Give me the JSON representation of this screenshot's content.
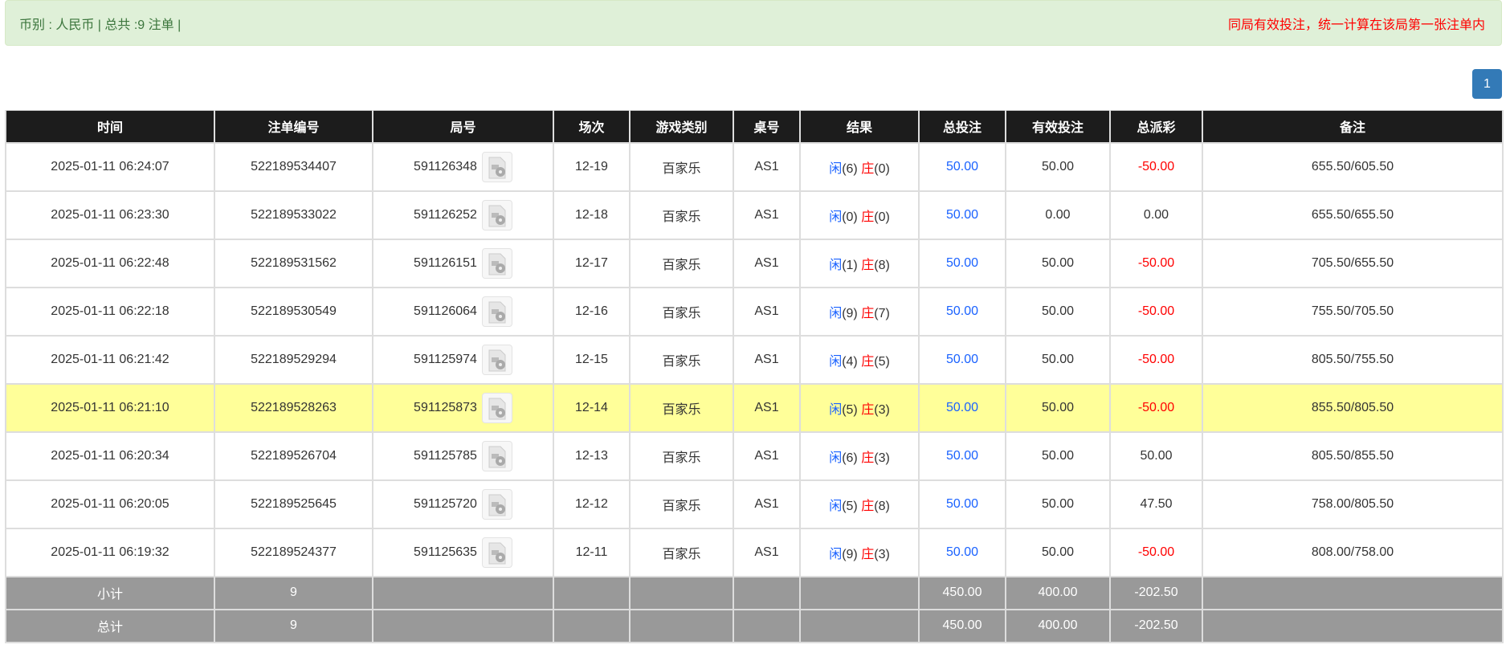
{
  "alert": {
    "summary": "币别 : 人民币 | 总共 :9 注单 |",
    "note": "同局有效投注，统一计算在该局第一张注单内"
  },
  "pagination": {
    "current": "1"
  },
  "colors": {
    "player": "#1a62ff",
    "banker": "#ff0000",
    "negative": "#ff0000",
    "highlight": "#ffff99",
    "header": "#1c1c1c",
    "summary": "#999999",
    "pager": "#337ab7"
  },
  "table": {
    "headers": [
      "时间",
      "注单编号",
      "局号",
      "场次",
      "游戏类别",
      "桌号",
      "结果",
      "总投注",
      "有效投注",
      "总派彩",
      "备注"
    ],
    "rows": [
      {
        "time": "2025-01-11 06:24:07",
        "bet_id": "522189534407",
        "round": "591126348",
        "shoe": "12-19",
        "game": "百家乐",
        "table": "AS1",
        "p": "闲",
        "pv": "(6)",
        "b": "庄",
        "bv": "(0)",
        "total": "50.00",
        "valid": "50.00",
        "payout": "-50.00",
        "neg": true,
        "remark": "655.50/605.50"
      },
      {
        "time": "2025-01-11 06:23:30",
        "bet_id": "522189533022",
        "round": "591126252",
        "shoe": "12-18",
        "game": "百家乐",
        "table": "AS1",
        "p": "闲",
        "pv": "(0)",
        "b": "庄",
        "bv": "(0)",
        "total": "50.00",
        "valid": "0.00",
        "payout": "0.00",
        "neg": false,
        "remark": "655.50/655.50"
      },
      {
        "time": "2025-01-11 06:22:48",
        "bet_id": "522189531562",
        "round": "591126151",
        "shoe": "12-17",
        "game": "百家乐",
        "table": "AS1",
        "p": "闲",
        "pv": "(1)",
        "b": "庄",
        "bv": "(8)",
        "total": "50.00",
        "valid": "50.00",
        "payout": "-50.00",
        "neg": true,
        "remark": "705.50/655.50"
      },
      {
        "time": "2025-01-11 06:22:18",
        "bet_id": "522189530549",
        "round": "591126064",
        "shoe": "12-16",
        "game": "百家乐",
        "table": "AS1",
        "p": "闲",
        "pv": "(9)",
        "b": "庄",
        "bv": "(7)",
        "total": "50.00",
        "valid": "50.00",
        "payout": "-50.00",
        "neg": true,
        "remark": "755.50/705.50"
      },
      {
        "time": "2025-01-11 06:21:42",
        "bet_id": "522189529294",
        "round": "591125974",
        "shoe": "12-15",
        "game": "百家乐",
        "table": "AS1",
        "p": "闲",
        "pv": "(4)",
        "b": "庄",
        "bv": "(5)",
        "total": "50.00",
        "valid": "50.00",
        "payout": "-50.00",
        "neg": true,
        "remark": "805.50/755.50"
      },
      {
        "time": "2025-01-11 06:21:10",
        "bet_id": "522189528263",
        "round": "591125873",
        "shoe": "12-14",
        "game": "百家乐",
        "table": "AS1",
        "p": "闲",
        "pv": "(5)",
        "b": "庄",
        "bv": "(3)",
        "total": "50.00",
        "valid": "50.00",
        "payout": "-50.00",
        "neg": true,
        "remark": "855.50/805.50",
        "highlight": true
      },
      {
        "time": "2025-01-11 06:20:34",
        "bet_id": "522189526704",
        "round": "591125785",
        "shoe": "12-13",
        "game": "百家乐",
        "table": "AS1",
        "p": "闲",
        "pv": "(6)",
        "b": "庄",
        "bv": "(3)",
        "total": "50.00",
        "valid": "50.00",
        "payout": "50.00",
        "neg": false,
        "remark": "805.50/855.50"
      },
      {
        "time": "2025-01-11 06:20:05",
        "bet_id": "522189525645",
        "round": "591125720",
        "shoe": "12-12",
        "game": "百家乐",
        "table": "AS1",
        "p": "闲",
        "pv": "(5)",
        "b": "庄",
        "bv": "(8)",
        "total": "50.00",
        "valid": "50.00",
        "payout": "47.50",
        "neg": false,
        "remark": "758.00/805.50"
      },
      {
        "time": "2025-01-11 06:19:32",
        "bet_id": "522189524377",
        "round": "591125635",
        "shoe": "12-11",
        "game": "百家乐",
        "table": "AS1",
        "p": "闲",
        "pv": "(9)",
        "b": "庄",
        "bv": "(3)",
        "total": "50.00",
        "valid": "50.00",
        "payout": "-50.00",
        "neg": true,
        "remark": "808.00/758.00"
      }
    ],
    "subtotal": {
      "label": "小计",
      "count": "9",
      "total": "450.00",
      "valid": "400.00",
      "payout": "-202.50"
    },
    "grand_total": {
      "label": "总计",
      "count": "9",
      "total": "450.00",
      "valid": "400.00",
      "payout": "-202.50"
    }
  }
}
